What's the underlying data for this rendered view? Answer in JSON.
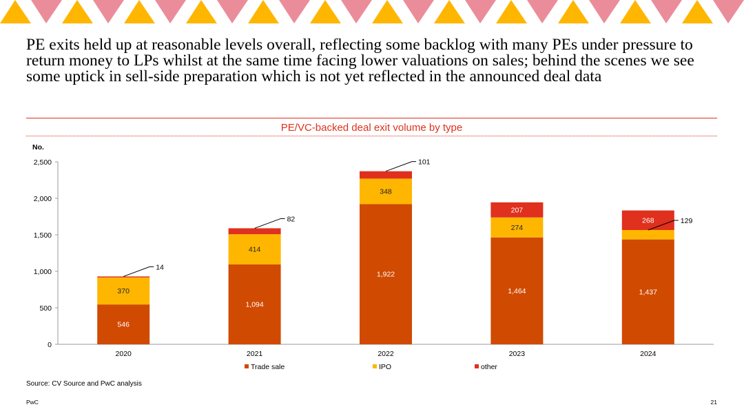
{
  "headline": "PE exits held up at reasonable levels overall, reflecting some backlog with many PEs under pressure to return money to LPs whilst at the same time facing lower valuations on sales; behind the scenes we see some uptick in sell-side preparation which is not yet reflected in the announced deal data",
  "colors": {
    "trade_sale": "#d04a02",
    "ipo": "#ffb600",
    "other": "#e0301e",
    "accent": "#e0301e",
    "banner_pink": "#eb8c9a",
    "banner_orange": "#ffb600"
  },
  "chart_data": {
    "type": "bar",
    "stacked": true,
    "title": "PE/VC-backed deal exit volume by type",
    "ylabel": "No.",
    "xlabel": "",
    "ylim": [
      0,
      2500
    ],
    "yticks": [
      "0",
      "500",
      "1,000",
      "1,500",
      "2,000",
      "2,500"
    ],
    "ytick_values": [
      0,
      500,
      1000,
      1500,
      2000,
      2500
    ],
    "grid": false,
    "legend_position": "bottom",
    "categories": [
      "2020",
      "2021",
      "2022",
      "2023",
      "2024"
    ],
    "series": [
      {
        "name": "Trade sale",
        "values": [
          546,
          1094,
          1922,
          1464,
          1437
        ],
        "labels": [
          "546",
          "1,094",
          "1,922",
          "1,464",
          "1,437"
        ],
        "color": "#d04a02"
      },
      {
        "name": "IPO",
        "values": [
          370,
          414,
          348,
          274,
          129
        ],
        "labels": [
          "370",
          "414",
          "348",
          "274",
          "129"
        ],
        "color": "#ffb600"
      },
      {
        "name": "other",
        "values": [
          14,
          82,
          101,
          207,
          268
        ],
        "labels": [
          "14",
          "82",
          "101",
          "207",
          "268"
        ],
        "color": "#e0301e"
      }
    ]
  },
  "source": "Source: CV Source and PwC analysis",
  "footer": {
    "brand": "PwC",
    "page": "21"
  }
}
